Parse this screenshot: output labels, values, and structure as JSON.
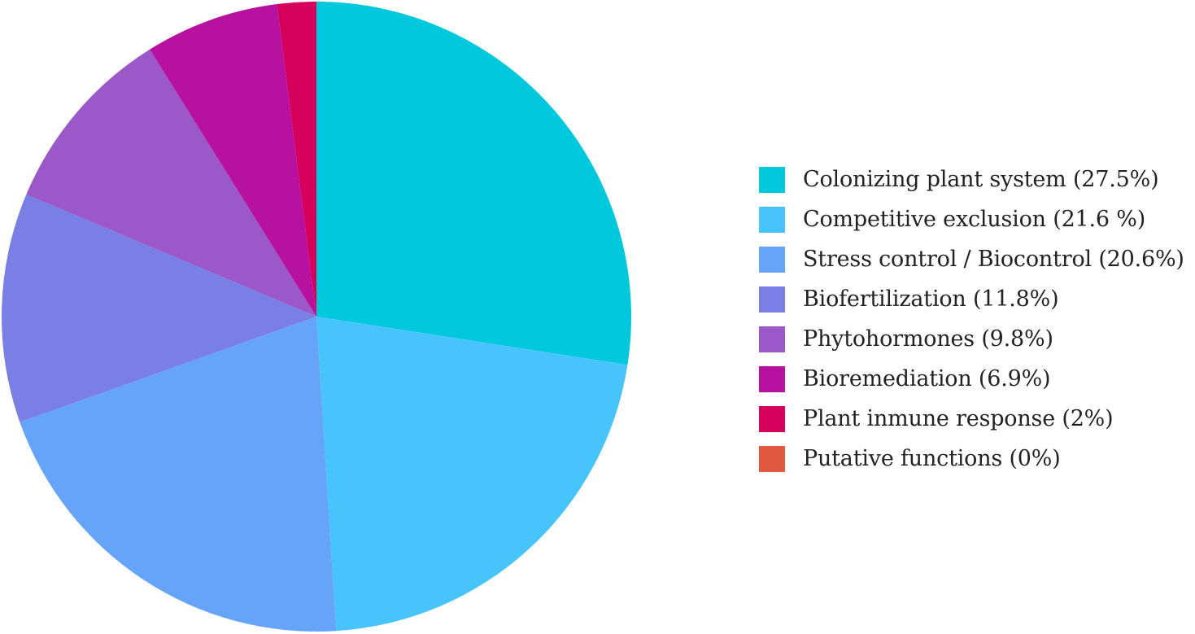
{
  "chart_data": {
    "type": "pie",
    "title": "",
    "slices": [
      {
        "label": "Colonizing plant system (27.5%)",
        "value": 27.5,
        "color": "#00c8dc"
      },
      {
        "label": "Competitive exclusion (21.6 %)",
        "value": 21.6,
        "color": "#48c4fd"
      },
      {
        "label": "Stress control / Biocontrol (20.6%)",
        "value": 20.6,
        "color": "#66a4fa"
      },
      {
        "label": "Biofertilization (11.8%)",
        "value": 11.8,
        "color": "#7a7fe6"
      },
      {
        "label": "Phytohormones (9.8%)",
        "value": 9.8,
        "color": "#9a58c8"
      },
      {
        "label": "Bioremediation (6.9%)",
        "value": 6.9,
        "color": "#b7129f"
      },
      {
        "label": "Plant inmune response (2%)",
        "value": 2,
        "color": "#d4005c"
      },
      {
        "label": "Putative functions (0%)",
        "value": 0,
        "color": "#e05840"
      }
    ],
    "legend_position": "right",
    "start_angle": "12 o'clock",
    "direction": "clockwise"
  }
}
